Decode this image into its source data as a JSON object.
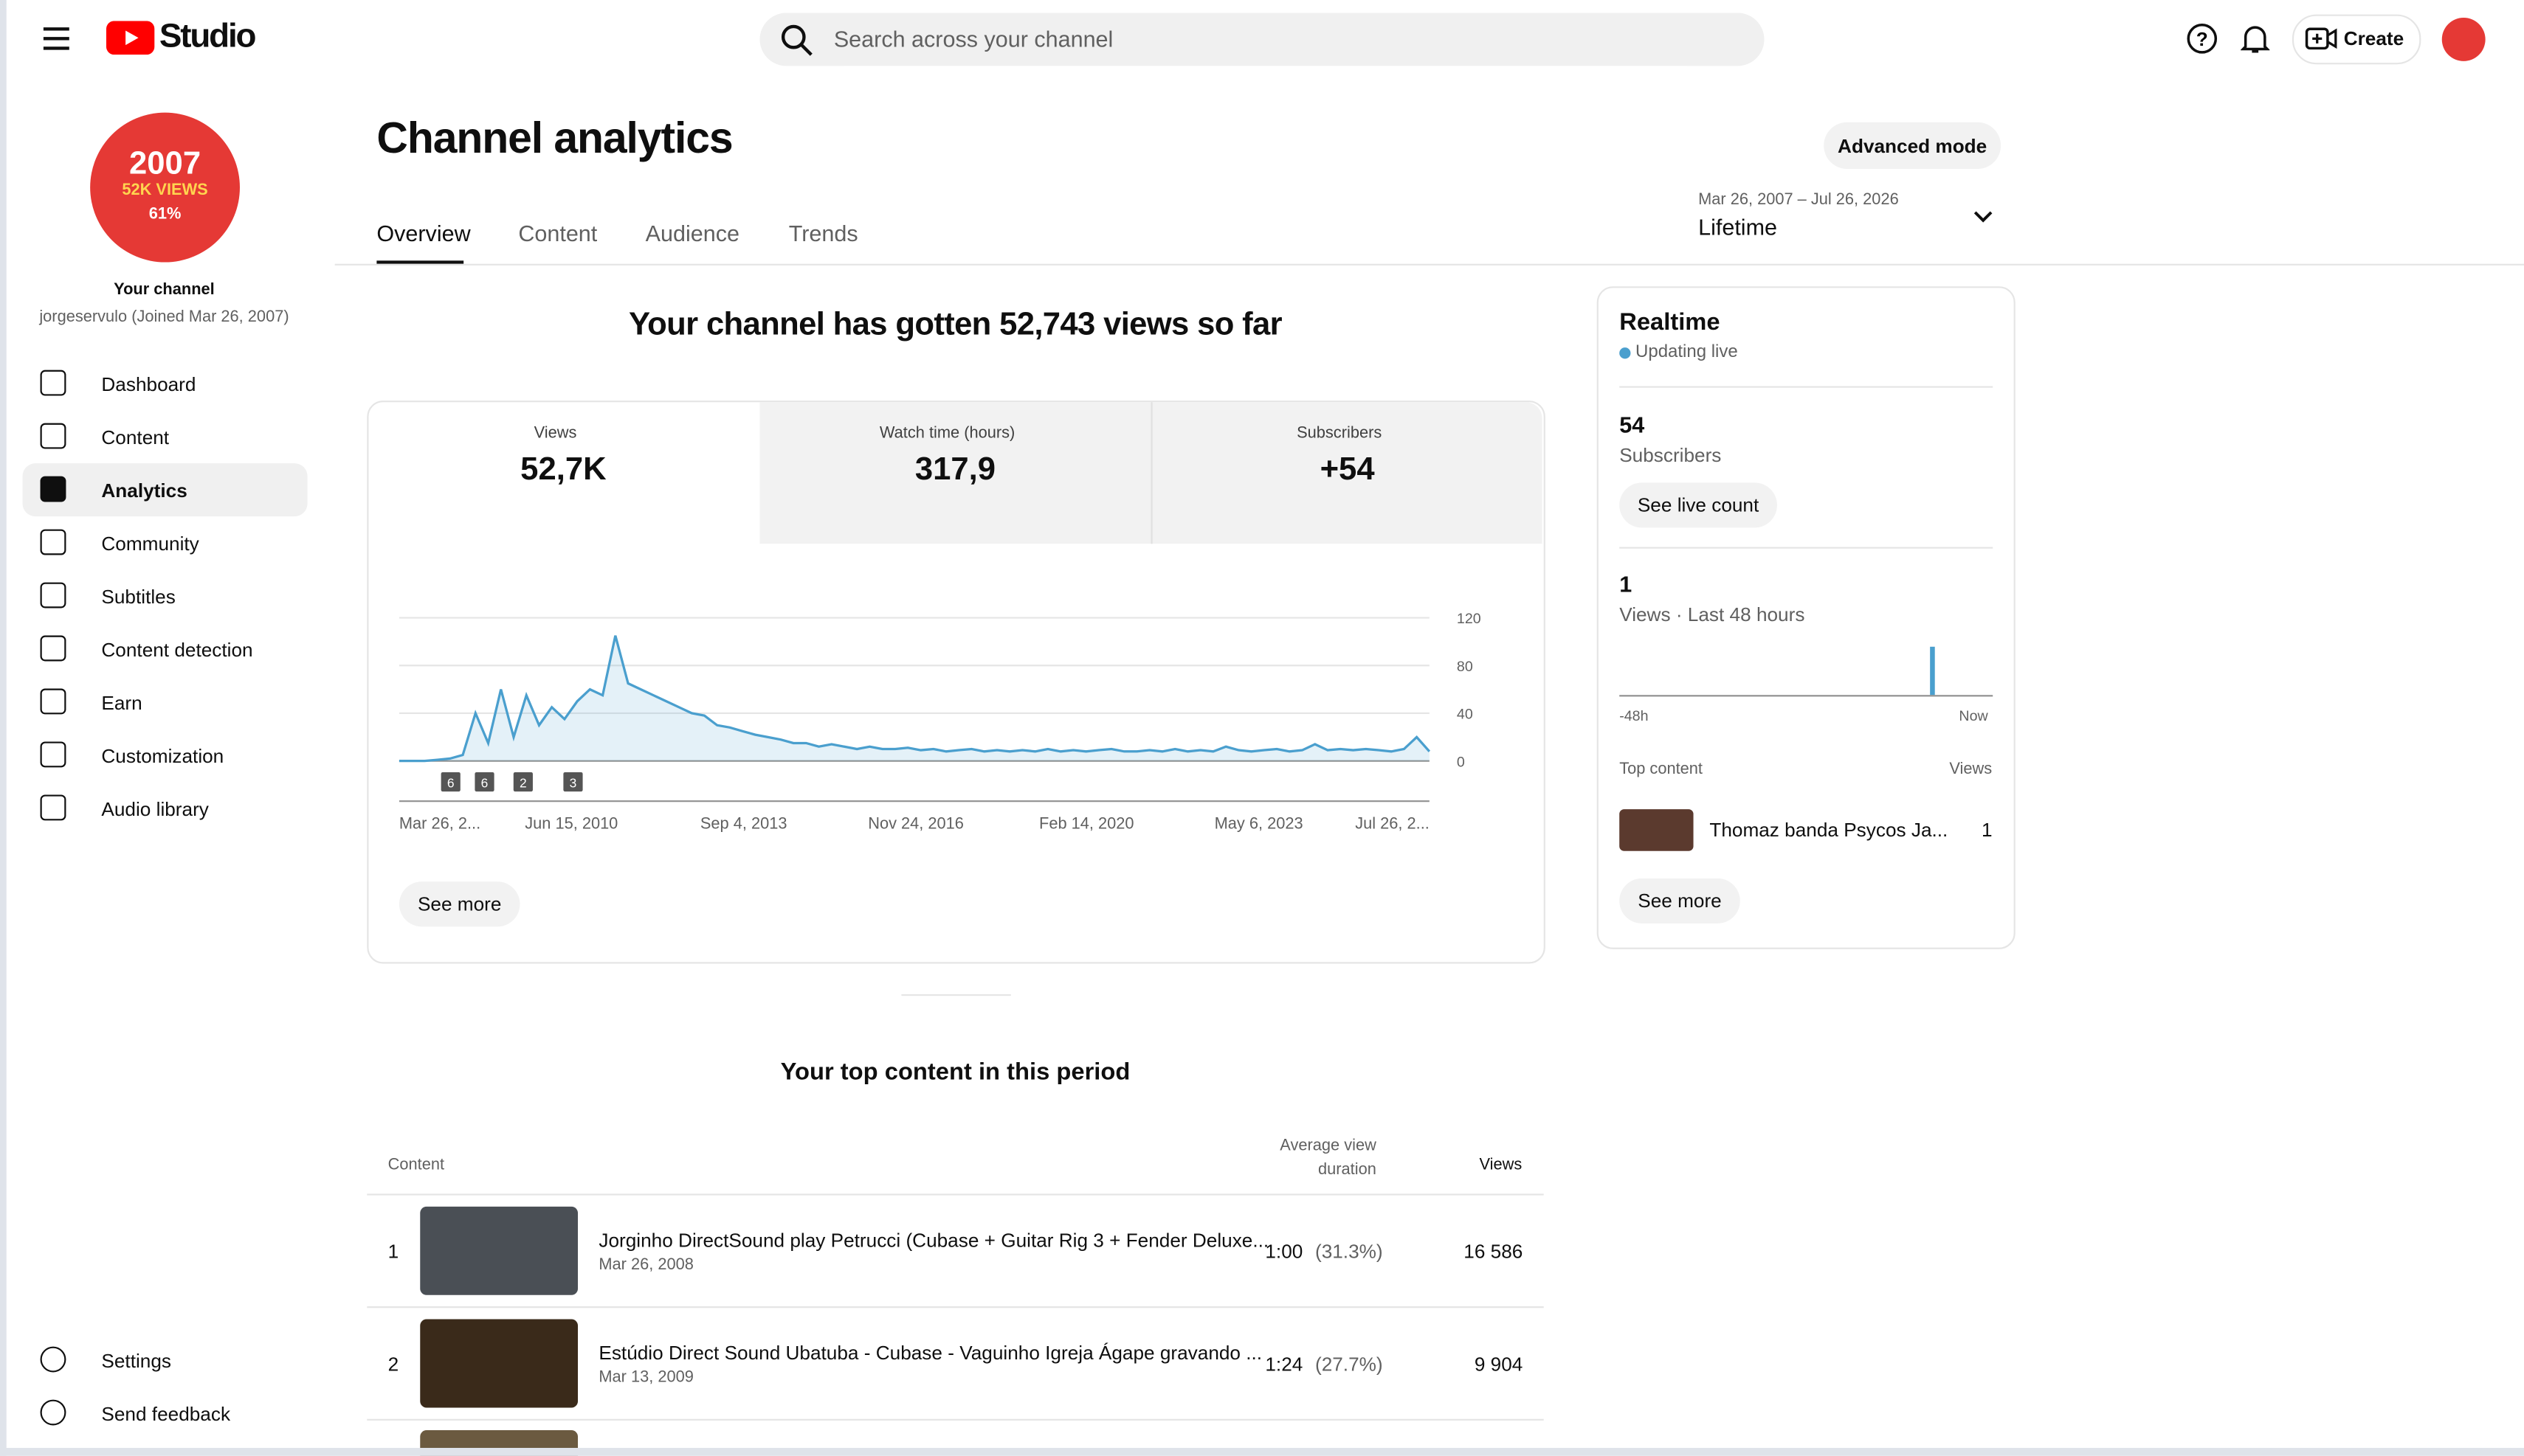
{
  "header": {
    "logo": "Studio",
    "search": "Search across your channel",
    "create": "Create"
  },
  "sidebar": {
    "avatar": [
      "2007",
      "52K VIEWS",
      "61%"
    ],
    "channel_label": "Your channel",
    "channel_name": "jorgeservulo (Joined Mar 26, 2007)",
    "nav": [
      "Dashboard",
      "Content",
      "Analytics",
      "Community",
      "Subtitles",
      "Content detection",
      "Earn",
      "Customization",
      "Audio library"
    ],
    "bottom": [
      "Settings",
      "Send feedback"
    ]
  },
  "page": {
    "title": "Channel analytics",
    "advanced": "Advanced mode",
    "tabs": [
      "Overview",
      "Content",
      "Audience",
      "Trends"
    ],
    "date_range": "Mar 26, 2007 – Jul 26, 2026",
    "period": "Lifetime"
  },
  "headline": "Your channel has gotten 52,743 views so far",
  "metrics": [
    {
      "label": "Views",
      "value": "52,7K"
    },
    {
      "label": "Watch time (hours)",
      "value": "317,9"
    },
    {
      "label": "Subscribers",
      "value": "+54"
    }
  ],
  "chart": {
    "type": "line",
    "color": "#4a9fce",
    "values": [
      0,
      0,
      0,
      1,
      2,
      5,
      40,
      15,
      60,
      20,
      55,
      30,
      45,
      35,
      50,
      60,
      55,
      105,
      65,
      60,
      55,
      50,
      45,
      40,
      38,
      30,
      28,
      25,
      22,
      20,
      18,
      15,
      15,
      12,
      14,
      12,
      10,
      12,
      10,
      10,
      11,
      9,
      10,
      8,
      9,
      10,
      8,
      9,
      8,
      9,
      8,
      10,
      8,
      9,
      8,
      9,
      10,
      8,
      8,
      9,
      8,
      10,
      8,
      9,
      8,
      12,
      9,
      8,
      9,
      10,
      8,
      9,
      14,
      9,
      10,
      9,
      10,
      9,
      8,
      10,
      20,
      8
    ],
    "ylim": [
      0,
      120
    ],
    "yticks": [
      0,
      40,
      80,
      120
    ],
    "xticks": [
      "Mar 26, 2...",
      "Jun 15, 2010",
      "Sep 4, 2013",
      "Nov 24, 2016",
      "Feb 14, 2020",
      "May 6, 2023",
      "Jul 26, 2..."
    ],
    "annotations": [
      "6",
      "6",
      "2",
      "3"
    ],
    "see_more": "See more"
  },
  "realtime": {
    "title": "Realtime",
    "status": "Updating live",
    "subscribers": "54",
    "subscribers_label": "Subscribers",
    "live_button": "See live count",
    "views": "1",
    "views_label": "Views · Last 48 hours",
    "axis": [
      "-48h",
      "Now"
    ],
    "top_label": "Top content",
    "views_header": "Views",
    "top_title": "Thomaz banda Psycos Ja...",
    "top_views": "1",
    "see_more": "See more"
  },
  "top_content": {
    "title": "Your top content in this period",
    "headers": [
      "Content",
      "Average view duration",
      "Views"
    ],
    "rows": [
      [
        "1",
        "Jorginho DirectSound play Petrucci (Cubase + Guitar Rig 3 + Fender Deluxe...",
        "Mar 26, 2008",
        "1:00",
        "(31.3%)",
        "16 586"
      ],
      [
        "2",
        "Estúdio Direct Sound Ubatuba - Cubase - Vaguinho Igreja Ágape gravando ...",
        "Mar 13, 2009",
        "1:24",
        "(27.7%)",
        "9 904"
      ]
    ]
  }
}
